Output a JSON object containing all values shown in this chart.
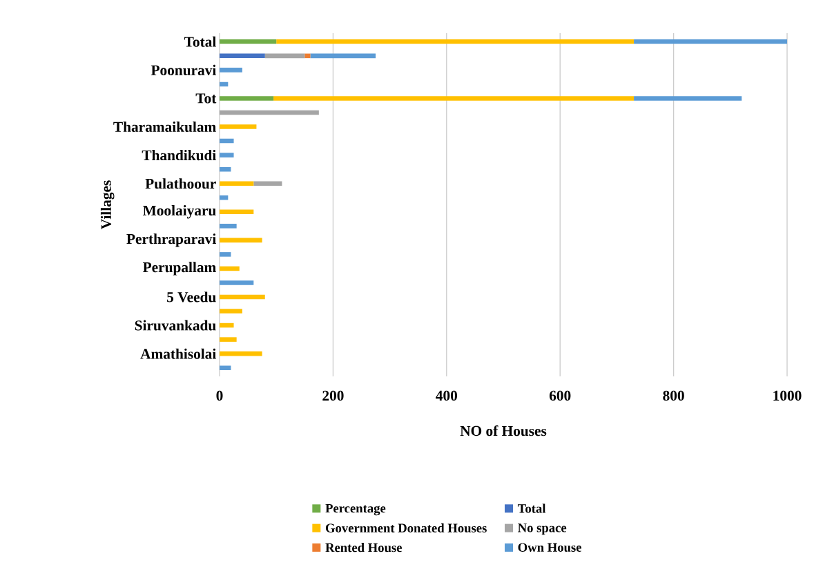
{
  "chart_data": {
    "type": "bar",
    "orientation": "horizontal",
    "stacked": true,
    "xlabel": "NO of Houses",
    "ylabel": "Villages",
    "categories": [
      "Total",
      null,
      "Poonuravi",
      null,
      "Tot",
      null,
      "Tharamaikulam",
      null,
      "Thandikudi",
      null,
      "Pulathoour",
      null,
      "Moolaiyaru",
      null,
      "Perthraparavi",
      null,
      "Perupallam",
      null,
      "5 Veedu",
      null,
      "Siruvankadu",
      null,
      "Amathisolai",
      null
    ],
    "series": [
      {
        "name": "Percentage",
        "color": "#70ad47",
        "values": [
          100,
          0,
          0,
          0,
          95,
          0,
          0,
          0,
          0,
          0,
          0,
          0,
          0,
          0,
          0,
          0,
          0,
          0,
          0,
          0,
          0,
          0,
          0,
          0
        ]
      },
      {
        "name": "Total",
        "color": "#4472c4",
        "values": [
          0,
          80,
          0,
          0,
          0,
          0,
          0,
          0,
          0,
          0,
          0,
          0,
          0,
          0,
          0,
          0,
          0,
          0,
          0,
          0,
          0,
          0,
          0,
          0
        ]
      },
      {
        "name": "Government Donated Houses",
        "color": "#ffc000",
        "values": [
          630,
          0,
          0,
          0,
          635,
          0,
          65,
          0,
          0,
          0,
          60,
          0,
          60,
          0,
          75,
          0,
          35,
          0,
          80,
          40,
          25,
          30,
          75,
          0
        ]
      },
      {
        "name": "No space",
        "color": "#a5a5a5",
        "values": [
          0,
          70,
          0,
          0,
          0,
          175,
          0,
          0,
          0,
          0,
          50,
          0,
          0,
          0,
          0,
          0,
          0,
          0,
          0,
          0,
          0,
          0,
          0,
          0
        ]
      },
      {
        "name": "Rented  House",
        "color": "#ed7d31",
        "values": [
          0,
          10,
          0,
          0,
          0,
          0,
          0,
          0,
          0,
          0,
          0,
          0,
          0,
          0,
          0,
          0,
          0,
          0,
          0,
          0,
          0,
          0,
          0,
          0
        ]
      },
      {
        "name": "Own House",
        "color": "#5b9bd5",
        "values": [
          270,
          115,
          40,
          15,
          190,
          0,
          0,
          25,
          25,
          20,
          0,
          15,
          0,
          30,
          0,
          20,
          0,
          60,
          0,
          0,
          0,
          0,
          0,
          20
        ]
      }
    ],
    "xlim": [
      0,
      1000
    ],
    "xticks": [
      0,
      200,
      400,
      600,
      800,
      1000
    ],
    "grid": "x",
    "legend": "bottom"
  }
}
